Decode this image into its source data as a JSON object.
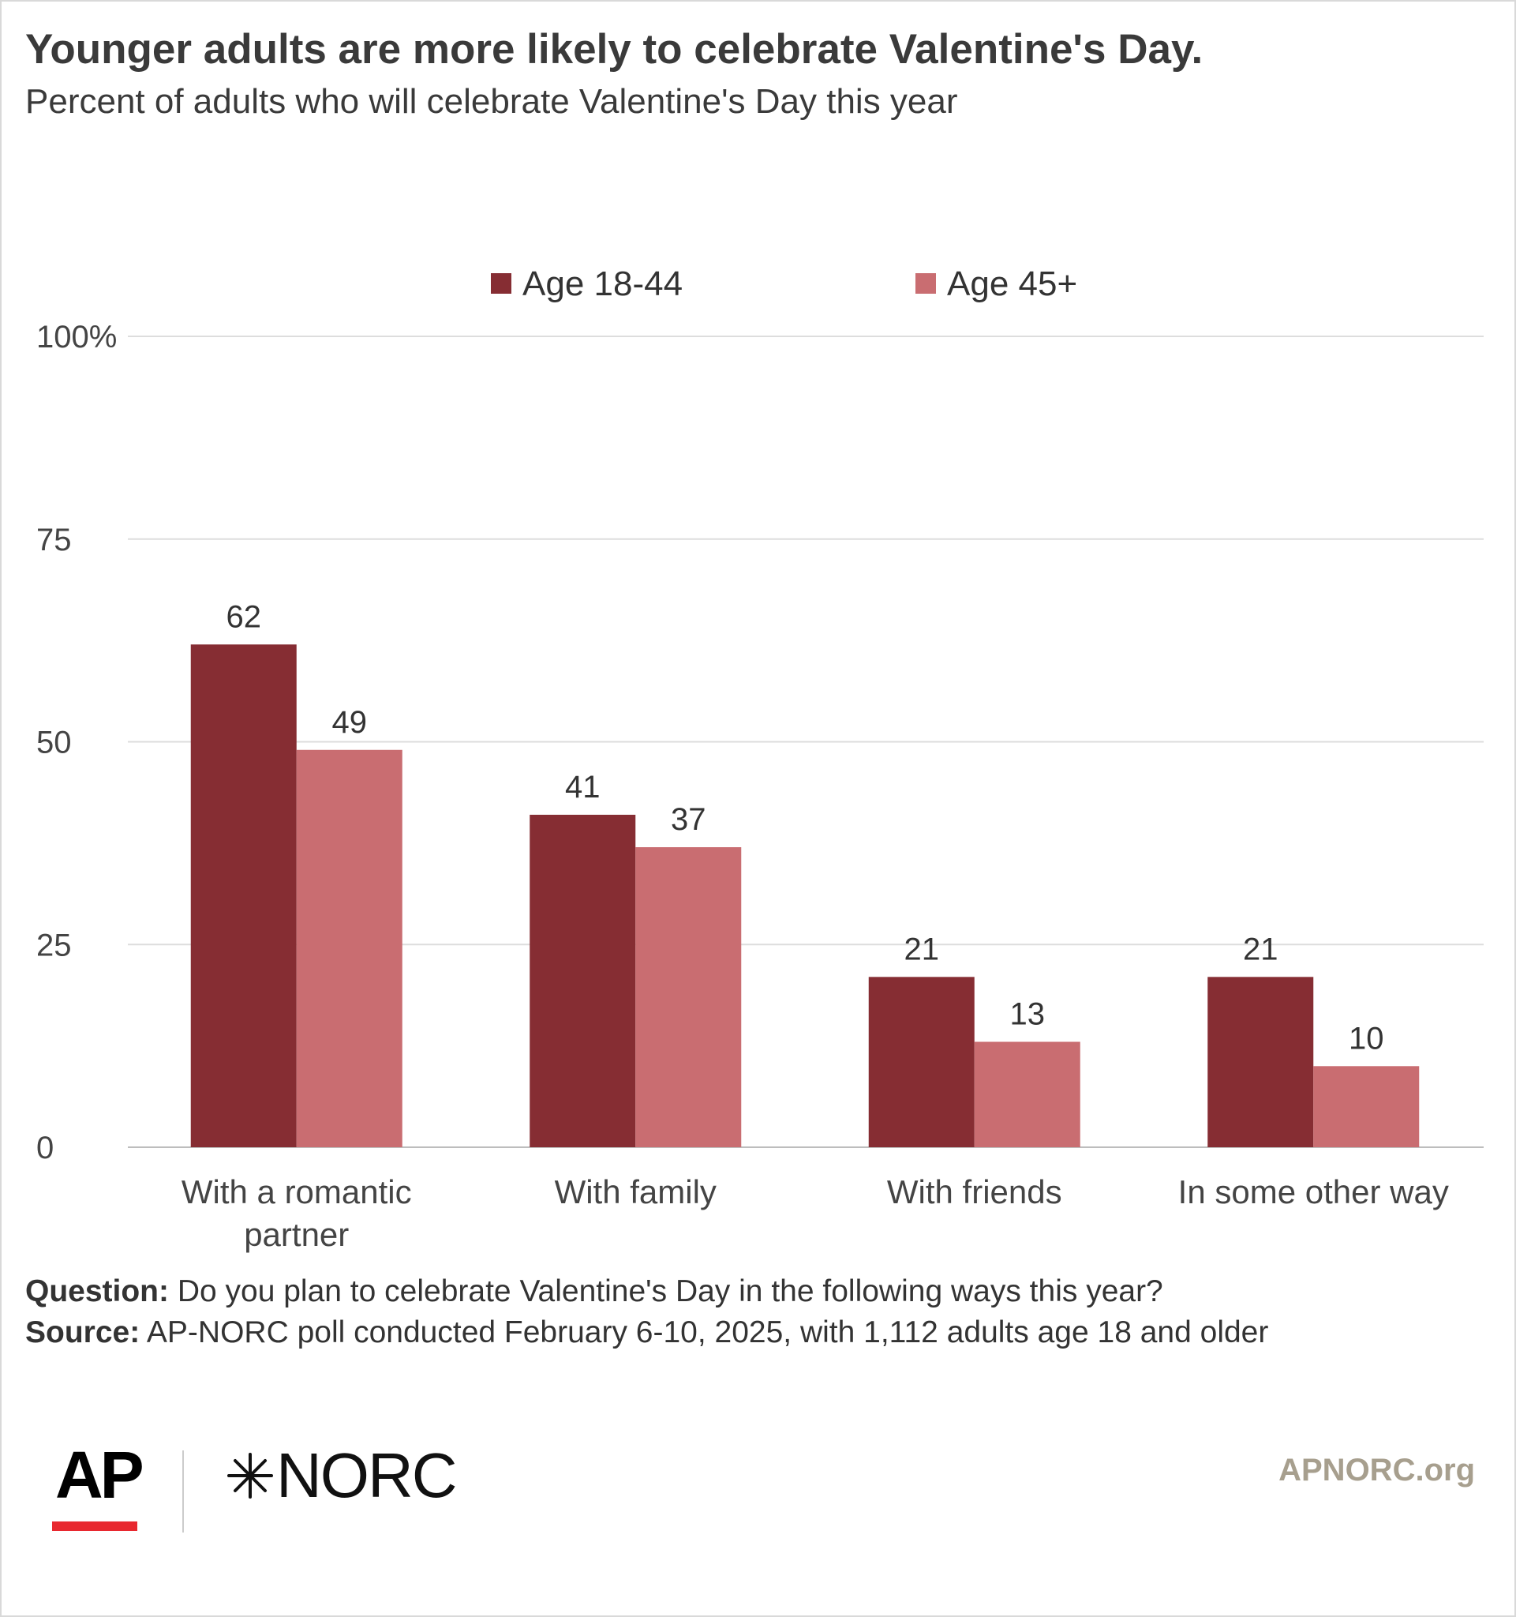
{
  "title": "Younger adults are more likely to celebrate Valentine's Day.",
  "subtitle": "Percent of adults who will celebrate Valentine's Day this year",
  "chart_data": {
    "type": "bar",
    "categories": [
      "With a romantic partner",
      "With family",
      "With friends",
      "In some other way"
    ],
    "category_lines": [
      [
        "With a romantic",
        "partner"
      ],
      [
        "With family"
      ],
      [
        "With friends"
      ],
      [
        "In some other way"
      ]
    ],
    "series": [
      {
        "name": "Age 18-44",
        "values": [
          62,
          41,
          21,
          21
        ],
        "color": "#862d33"
      },
      {
        "name": "Age 45+",
        "values": [
          49,
          37,
          13,
          10
        ],
        "color": "#c96d71"
      }
    ],
    "ylim": [
      0,
      100
    ],
    "yticks": [
      0,
      25,
      50,
      75,
      100
    ],
    "ytick_labels": [
      "0",
      "25",
      "50",
      "75",
      "100%"
    ],
    "grid": true,
    "legend_position": "top-center",
    "xlabel": "",
    "ylabel": ""
  },
  "footer": {
    "question_label": "Question:",
    "question_text": " Do you plan to celebrate Valentine's Day in the following ways this year?",
    "source_label": "Source:",
    "source_text": " AP-NORC poll conducted February 6-10, 2025, with 1,112 adults age 18 and older"
  },
  "logos": {
    "ap": "AP",
    "norc": "NORC",
    "ap_bar_color": "#e8282f"
  },
  "site": "APNORC.org"
}
